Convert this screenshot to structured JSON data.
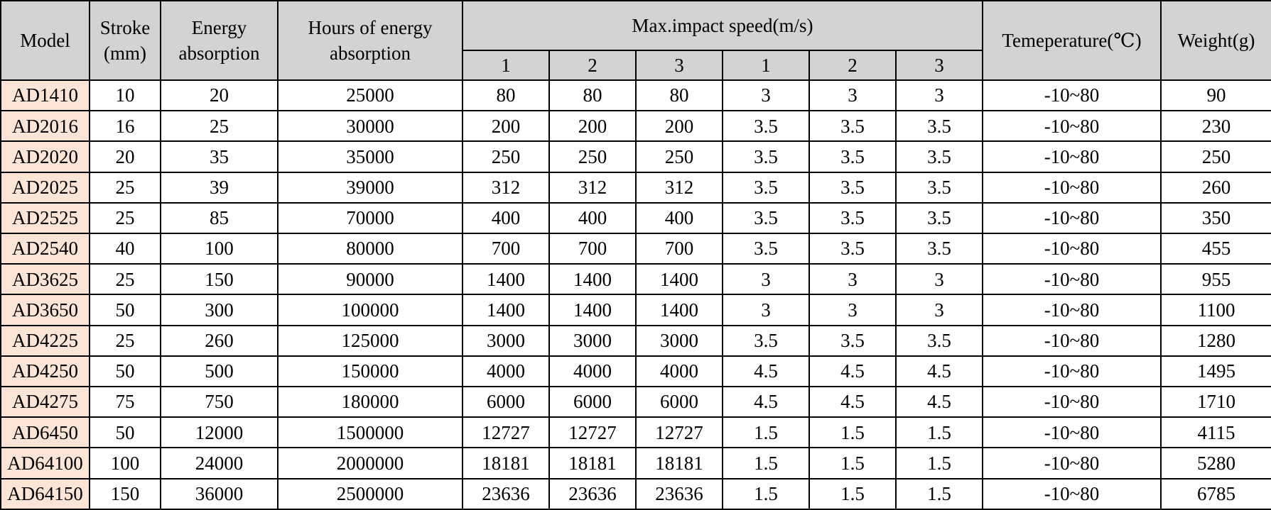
{
  "colors": {
    "header_bg": "#d3d3d3",
    "model_bg": "#fce4d6",
    "row_bg": "#ffffff",
    "border": "#000000"
  },
  "table": {
    "columns": {
      "model": "Model",
      "stroke": "Stroke (mm)",
      "energy": "Energy absorption",
      "hours": "Hours of energy absorption",
      "max_impact_group": "Max.impact speed(m/s)",
      "sub_columns": [
        "1",
        "2",
        "3",
        "1",
        "2",
        "3"
      ],
      "temperature": "Temeperature(℃)",
      "weight": "Weight(g)"
    },
    "rows": [
      [
        "AD1410",
        "10",
        "20",
        "25000",
        "80",
        "80",
        "80",
        "3",
        "3",
        "3",
        "-10~80",
        "90"
      ],
      [
        "AD2016",
        "16",
        "25",
        "30000",
        "200",
        "200",
        "200",
        "3.5",
        "3.5",
        "3.5",
        "-10~80",
        "230"
      ],
      [
        "AD2020",
        "20",
        "35",
        "35000",
        "250",
        "250",
        "250",
        "3.5",
        "3.5",
        "3.5",
        "-10~80",
        "250"
      ],
      [
        "AD2025",
        "25",
        "39",
        "39000",
        "312",
        "312",
        "312",
        "3.5",
        "3.5",
        "3.5",
        "-10~80",
        "260"
      ],
      [
        "AD2525",
        "25",
        "85",
        "70000",
        "400",
        "400",
        "400",
        "3.5",
        "3.5",
        "3.5",
        "-10~80",
        "350"
      ],
      [
        "AD2540",
        "40",
        "100",
        "80000",
        "700",
        "700",
        "700",
        "3.5",
        "3.5",
        "3.5",
        "-10~80",
        "455"
      ],
      [
        "AD3625",
        "25",
        "150",
        "90000",
        "1400",
        "1400",
        "1400",
        "3",
        "3",
        "3",
        "-10~80",
        "955"
      ],
      [
        "AD3650",
        "50",
        "300",
        "100000",
        "1400",
        "1400",
        "1400",
        "3",
        "3",
        "3",
        "-10~80",
        "1100"
      ],
      [
        "AD4225",
        "25",
        "260",
        "125000",
        "3000",
        "3000",
        "3000",
        "3.5",
        "3.5",
        "3.5",
        "-10~80",
        "1280"
      ],
      [
        "AD4250",
        "50",
        "500",
        "150000",
        "4000",
        "4000",
        "4000",
        "4.5",
        "4.5",
        "4.5",
        "-10~80",
        "1495"
      ],
      [
        "AD4275",
        "75",
        "750",
        "180000",
        "6000",
        "6000",
        "6000",
        "4.5",
        "4.5",
        "4.5",
        "-10~80",
        "1710"
      ],
      [
        "AD6450",
        "50",
        "12000",
        "1500000",
        "12727",
        "12727",
        "12727",
        "1.5",
        "1.5",
        "1.5",
        "-10~80",
        "4115"
      ],
      [
        "AD64100",
        "100",
        "24000",
        "2000000",
        "18181",
        "18181",
        "18181",
        "1.5",
        "1.5",
        "1.5",
        "-10~80",
        "5280"
      ],
      [
        "AD64150",
        "150",
        "36000",
        "2500000",
        "23636",
        "23636",
        "23636",
        "1.5",
        "1.5",
        "1.5",
        "-10~80",
        "6785"
      ]
    ]
  }
}
